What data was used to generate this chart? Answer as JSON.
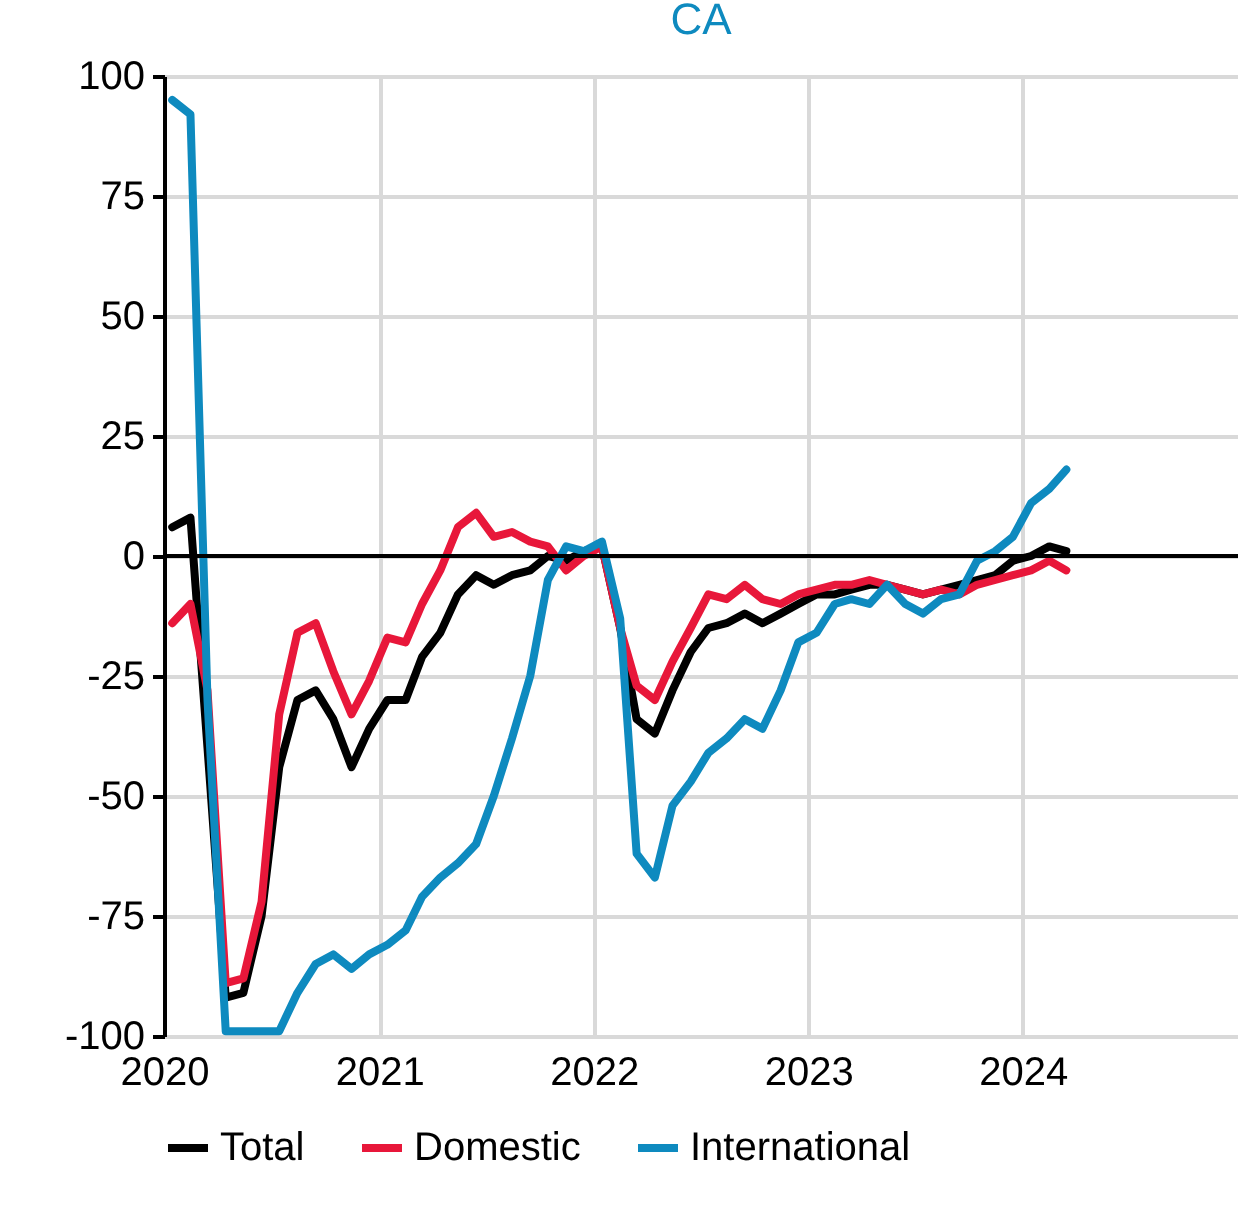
{
  "chart_data": {
    "type": "line",
    "title": "CA",
    "x": [
      "2020-01-15",
      "2020-02-15",
      "2020-03-15",
      "2020-04-15",
      "2020-05-15",
      "2020-06-15",
      "2020-07-15",
      "2020-08-15",
      "2020-09-15",
      "2020-10-15",
      "2020-11-15",
      "2020-12-15",
      "2021-01-15",
      "2021-02-15",
      "2021-03-15",
      "2021-04-15",
      "2021-05-15",
      "2021-06-15",
      "2021-07-15",
      "2021-08-15",
      "2021-09-15",
      "2021-10-15",
      "2021-11-15",
      "2021-12-15",
      "2022-01-15",
      "2022-02-15",
      "2022-03-15",
      "2022-04-15",
      "2022-05-15",
      "2022-06-15",
      "2022-07-15",
      "2022-08-15",
      "2022-09-15",
      "2022-10-15",
      "2022-11-15",
      "2022-12-15",
      "2023-01-15",
      "2023-02-15",
      "2023-03-15",
      "2023-04-15",
      "2023-05-15",
      "2023-06-15",
      "2023-07-15",
      "2023-08-15",
      "2023-09-15",
      "2023-10-15",
      "2023-11-15",
      "2023-12-15",
      "2024-01-15",
      "2024-02-15",
      "2024-03-15"
    ],
    "series": [
      {
        "name": "Total",
        "color": "#000000",
        "values": [
          6,
          8,
          -40,
          -92,
          -91,
          -75,
          -44,
          -30,
          -28,
          -34,
          -44,
          -36,
          -30,
          -30,
          -21,
          -16,
          -8,
          -4,
          -6,
          -4,
          -3,
          0,
          -1,
          1,
          2,
          -15,
          -34,
          -37,
          -28,
          -20,
          -15,
          -14,
          -12,
          -14,
          -12,
          -10,
          -8,
          -8,
          -7,
          -6,
          -6,
          -7,
          -8,
          -7,
          -6,
          -5,
          -4,
          -1,
          0,
          2,
          1
        ]
      },
      {
        "name": "Domestic",
        "color": "#e8173a",
        "values": [
          -14,
          -10,
          -28,
          -89,
          -88,
          -72,
          -33,
          -16,
          -14,
          -24,
          -33,
          -26,
          -17,
          -18,
          -10,
          -3,
          6,
          9,
          4,
          5,
          3,
          2,
          -3,
          0,
          2,
          -15,
          -27,
          -30,
          -22,
          -15,
          -8,
          -9,
          -6,
          -9,
          -10,
          -8,
          -7,
          -6,
          -6,
          -5,
          -6,
          -7,
          -8,
          -7,
          -8,
          -6,
          -5,
          -4,
          -3,
          -1,
          -3
        ]
      },
      {
        "name": "International",
        "color": "#0e8abf",
        "values": [
          95,
          92,
          -30,
          -99,
          -99,
          -99,
          -99,
          -91,
          -85,
          -83,
          -86,
          -83,
          -81,
          -78,
          -71,
          -67,
          -64,
          -60,
          -50,
          -38,
          -25,
          -5,
          2,
          1,
          3,
          -13,
          -62,
          -67,
          -52,
          -47,
          -41,
          -38,
          -34,
          -36,
          -28,
          -18,
          -16,
          -10,
          -9,
          -10,
          -6,
          -10,
          -12,
          -9,
          -8,
          -1,
          1,
          4,
          11,
          14,
          18
        ]
      }
    ],
    "xlim": [
      "2020",
      "2025"
    ],
    "xticks": [
      {
        "value": "2020",
        "label": "2020"
      },
      {
        "value": "2021",
        "label": "2021"
      },
      {
        "value": "2022",
        "label": "2022"
      },
      {
        "value": "2023",
        "label": "2023"
      },
      {
        "value": "2024",
        "label": "2024"
      }
    ],
    "ylim": [
      -100,
      100
    ],
    "yticks": [
      -100,
      -75,
      -50,
      -25,
      0,
      25,
      50,
      75,
      100
    ],
    "ref_lines": [
      {
        "axis": "y",
        "value": 0,
        "color": "#000000"
      }
    ],
    "grid": true,
    "legend": "bottom",
    "marker": "none",
    "line_style": "solid"
  }
}
